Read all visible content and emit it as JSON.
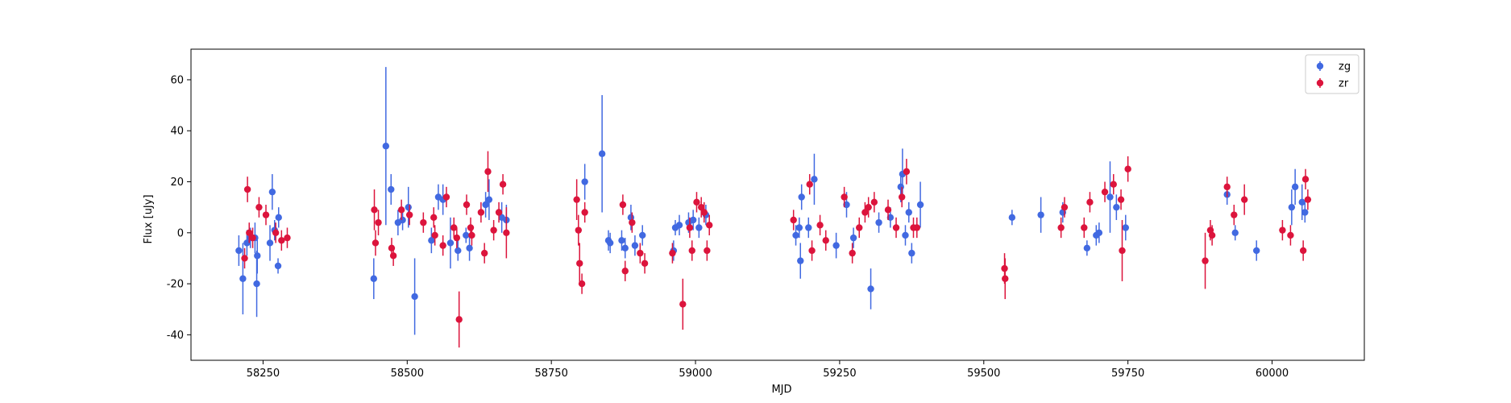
{
  "chart_data": {
    "type": "scatter",
    "title": "",
    "xlabel": "MJD",
    "ylabel": "Flux [uJy]",
    "xlim": [
      58125,
      60160
    ],
    "ylim": [
      -50,
      72
    ],
    "xticks": [
      58250,
      58500,
      58750,
      59000,
      59250,
      59500,
      59750,
      60000
    ],
    "yticks": [
      -40,
      -20,
      0,
      20,
      40,
      60
    ],
    "grid": false,
    "legend": "top-right",
    "error_bars": true,
    "series": [
      {
        "name": "zg",
        "color": "#4169e1",
        "points": [
          [
            58208,
            -7,
            6
          ],
          [
            58215,
            -18,
            14
          ],
          [
            58222,
            -4,
            5
          ],
          [
            58228,
            -2,
            4
          ],
          [
            58236,
            -2,
            6
          ],
          [
            58239,
            -20,
            13
          ],
          [
            58240,
            -9,
            7
          ],
          [
            58262,
            -4,
            7
          ],
          [
            58266,
            16,
            7
          ],
          [
            58270,
            1,
            4
          ],
          [
            58276,
            -13,
            3
          ],
          [
            58277,
            6,
            4
          ],
          [
            58442,
            -18,
            8
          ],
          [
            58463,
            34,
            31
          ],
          [
            58472,
            17,
            6
          ],
          [
            58484,
            4,
            5
          ],
          [
            58492,
            5,
            4
          ],
          [
            58502,
            10,
            8
          ],
          [
            58513,
            -25,
            15
          ],
          [
            58542,
            -3,
            5
          ],
          [
            58554,
            14,
            5
          ],
          [
            58562,
            13,
            6
          ],
          [
            58575,
            -4,
            10
          ],
          [
            58588,
            -7,
            4
          ],
          [
            58602,
            -1,
            3
          ],
          [
            58608,
            -6,
            5
          ],
          [
            58636,
            11,
            5
          ],
          [
            58642,
            13,
            8
          ],
          [
            58664,
            6,
            6
          ],
          [
            58672,
            5,
            6
          ],
          [
            58808,
            20,
            7
          ],
          [
            58838,
            31,
            23
          ],
          [
            58849,
            -3,
            4
          ],
          [
            58852,
            -4,
            4
          ],
          [
            58872,
            -3,
            4
          ],
          [
            58878,
            -6,
            4
          ],
          [
            58888,
            6,
            5
          ],
          [
            58895,
            -5,
            4
          ],
          [
            58908,
            -1,
            4
          ],
          [
            58962,
            -7,
            4
          ],
          [
            58965,
            2,
            3
          ],
          [
            58972,
            3,
            4
          ],
          [
            58988,
            4,
            4
          ],
          [
            58996,
            5,
            4
          ],
          [
            59006,
            2,
            4
          ],
          [
            59018,
            7,
            4
          ],
          [
            59174,
            -1,
            4
          ],
          [
            59180,
            2,
            4
          ],
          [
            59182,
            -11,
            7
          ],
          [
            59184,
            14,
            5
          ],
          [
            59196,
            2,
            4
          ],
          [
            59206,
            21,
            10
          ],
          [
            59244,
            -5,
            5
          ],
          [
            59262,
            11,
            5
          ],
          [
            59274,
            -2,
            4
          ],
          [
            59304,
            -22,
            8
          ],
          [
            59318,
            4,
            4
          ],
          [
            59338,
            6,
            4
          ],
          [
            59356,
            18,
            6
          ],
          [
            59359,
            23,
            10
          ],
          [
            59364,
            -1,
            4
          ],
          [
            59370,
            8,
            4
          ],
          [
            59375,
            -8,
            4
          ],
          [
            59390,
            11,
            9
          ],
          [
            59549,
            6,
            3
          ],
          [
            59599,
            7,
            7
          ],
          [
            59637,
            8,
            4
          ],
          [
            59679,
            -6,
            3
          ],
          [
            59695,
            -1,
            4
          ],
          [
            59700,
            0,
            4
          ],
          [
            59719,
            14,
            14
          ],
          [
            59730,
            10,
            5
          ],
          [
            59746,
            2,
            5
          ],
          [
            59922,
            15,
            4
          ],
          [
            59936,
            0,
            3
          ],
          [
            59973,
            -7,
            4
          ],
          [
            60034,
            10,
            7
          ],
          [
            60040,
            18,
            7
          ],
          [
            60052,
            12,
            7
          ],
          [
            60057,
            8,
            4
          ]
        ]
      },
      {
        "name": "zr",
        "color": "#dc143c",
        "points": [
          [
            58218,
            -10,
            4
          ],
          [
            58223,
            17,
            5
          ],
          [
            58226,
            0,
            4
          ],
          [
            58232,
            -2,
            4
          ],
          [
            58243,
            10,
            4
          ],
          [
            58255,
            7,
            4
          ],
          [
            58272,
            0,
            4
          ],
          [
            58282,
            -3,
            4
          ],
          [
            58292,
            -2,
            4
          ],
          [
            58443,
            9,
            8
          ],
          [
            58445,
            -4,
            5
          ],
          [
            58450,
            4,
            5
          ],
          [
            58473,
            -6,
            4
          ],
          [
            58476,
            -9,
            4
          ],
          [
            58490,
            9,
            4
          ],
          [
            58504,
            7,
            4
          ],
          [
            58528,
            4,
            4
          ],
          [
            58546,
            6,
            4
          ],
          [
            58548,
            -1,
            4
          ],
          [
            58562,
            -5,
            4
          ],
          [
            58568,
            14,
            4
          ],
          [
            58581,
            2,
            4
          ],
          [
            58586,
            -2,
            4
          ],
          [
            58590,
            -34,
            11
          ],
          [
            58603,
            11,
            4
          ],
          [
            58610,
            2,
            4
          ],
          [
            58612,
            -1,
            4
          ],
          [
            58628,
            8,
            4
          ],
          [
            58634,
            -8,
            4
          ],
          [
            58640,
            24,
            8
          ],
          [
            58650,
            1,
            4
          ],
          [
            58659,
            8,
            4
          ],
          [
            58666,
            19,
            4
          ],
          [
            58672,
            0,
            10
          ],
          [
            58794,
            13,
            8
          ],
          [
            58797,
            1,
            6
          ],
          [
            58799,
            -12,
            8
          ],
          [
            58803,
            -20,
            4
          ],
          [
            58808,
            8,
            4
          ],
          [
            58874,
            11,
            4
          ],
          [
            58878,
            -15,
            4
          ],
          [
            58890,
            4,
            4
          ],
          [
            58904,
            -8,
            4
          ],
          [
            58912,
            -12,
            4
          ],
          [
            58960,
            -8,
            4
          ],
          [
            58978,
            -28,
            10
          ],
          [
            58990,
            2,
            4
          ],
          [
            58994,
            -7,
            4
          ],
          [
            59002,
            12,
            4
          ],
          [
            59010,
            10,
            4
          ],
          [
            59015,
            8,
            4
          ],
          [
            59020,
            -7,
            4
          ],
          [
            59024,
            3,
            4
          ],
          [
            59170,
            5,
            4
          ],
          [
            59198,
            19,
            4
          ],
          [
            59202,
            -7,
            4
          ],
          [
            59216,
            3,
            4
          ],
          [
            59226,
            -3,
            4
          ],
          [
            59258,
            14,
            4
          ],
          [
            59272,
            -8,
            4
          ],
          [
            59284,
            2,
            4
          ],
          [
            59294,
            8,
            4
          ],
          [
            59300,
            10,
            4
          ],
          [
            59310,
            12,
            4
          ],
          [
            59334,
            9,
            4
          ],
          [
            59348,
            2,
            4
          ],
          [
            59358,
            14,
            4
          ],
          [
            59366,
            24,
            5
          ],
          [
            59378,
            2,
            4
          ],
          [
            59384,
            2,
            4
          ],
          [
            59536,
            -14,
            6
          ],
          [
            59537,
            -18,
            8
          ],
          [
            59634,
            2,
            4
          ],
          [
            59640,
            10,
            4
          ],
          [
            59674,
            2,
            4
          ],
          [
            59684,
            12,
            4
          ],
          [
            59710,
            16,
            4
          ],
          [
            59725,
            19,
            4
          ],
          [
            59738,
            13,
            4
          ],
          [
            59740,
            -7,
            12
          ],
          [
            59750,
            25,
            5
          ],
          [
            59884,
            -11,
            11
          ],
          [
            59893,
            1,
            4
          ],
          [
            59896,
            -1,
            4
          ],
          [
            59922,
            18,
            4
          ],
          [
            59934,
            7,
            4
          ],
          [
            59952,
            13,
            6
          ],
          [
            60018,
            1,
            4
          ],
          [
            60032,
            -1,
            4
          ],
          [
            60054,
            -7,
            4
          ],
          [
            60058,
            21,
            4
          ],
          [
            60062,
            13,
            4
          ]
        ]
      }
    ]
  }
}
